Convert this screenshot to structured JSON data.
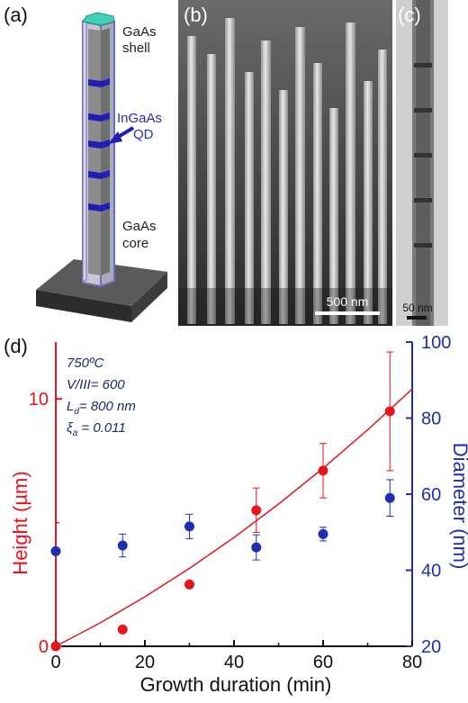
{
  "panel_a": {
    "label": "(a)",
    "shell_label": [
      "GaAs",
      "shell"
    ],
    "qd_label": [
      "InGaAs",
      "QD"
    ],
    "core_label": [
      "GaAs",
      "core"
    ]
  },
  "panel_b": {
    "label": "(b)",
    "scalebar": "500 nm"
  },
  "panel_c": {
    "label": "(c)",
    "scalebar": "50 nm"
  },
  "colors": {
    "height": "#e8141c",
    "diameter": "#1e2db4",
    "fit": "#e01820",
    "annot": "#1a2a6a"
  },
  "chart_data": {
    "type": "scatter",
    "label": "(d)",
    "annotation_lines": [
      "750ºC",
      "V/III= 600",
      "L_d= 800 nm",
      "ξ_a = 0.011"
    ],
    "xlabel": "Growth duration (min)",
    "ylabel_left": "Height (µm)",
    "ylabel_right": "Diameter (nm)",
    "xlim": [
      0,
      80
    ],
    "ylim_left": [
      0,
      12.3
    ],
    "ylim_right": [
      20,
      100
    ],
    "x_ticks": [
      0,
      20,
      40,
      60,
      80
    ],
    "y_left_ticks": [
      0,
      10
    ],
    "y_right_ticks": [
      20,
      40,
      60,
      80,
      100
    ],
    "series": [
      {
        "axis": "left",
        "color": "#e8141c",
        "x": [
          0,
          15,
          30,
          45,
          60,
          75
        ],
        "y": [
          0.0,
          0.68,
          2.5,
          5.5,
          7.1,
          9.5
        ],
        "err": [
          0,
          0,
          0,
          0.9,
          1.1,
          2.4
        ]
      },
      {
        "axis": "right",
        "color": "#1e2db4",
        "x": [
          0,
          15,
          30,
          45,
          60,
          75
        ],
        "y": [
          45,
          46.5,
          51.5,
          46,
          49.5,
          59
        ],
        "err": [
          0,
          3,
          3.2,
          3.3,
          1.8,
          4.8
        ]
      }
    ],
    "fit": {
      "axis": "left",
      "x": [
        0,
        10,
        20,
        30,
        40,
        50,
        60,
        70,
        80
      ],
      "y": [
        0.0,
        0.95,
        2.0,
        3.15,
        4.4,
        5.75,
        7.2,
        8.75,
        10.4
      ]
    }
  }
}
